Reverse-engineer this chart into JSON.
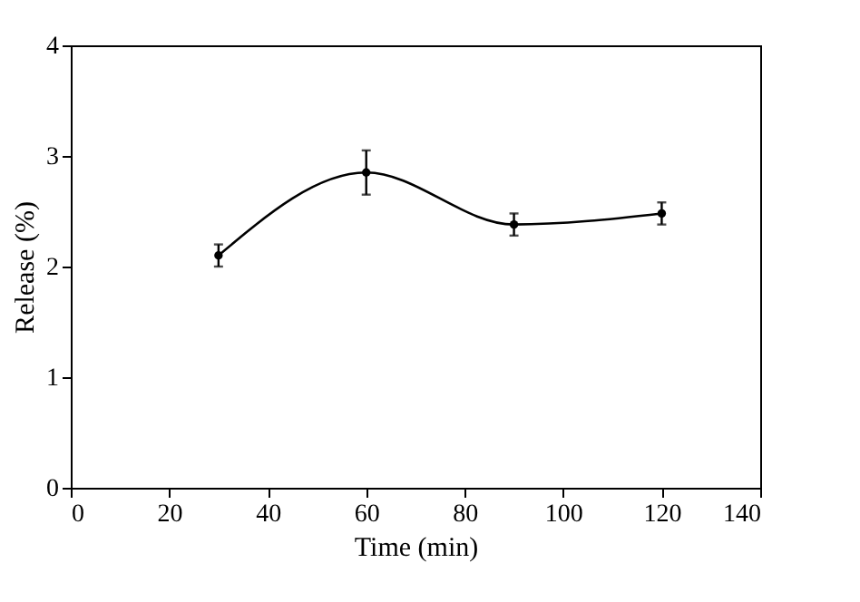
{
  "chart_data": {
    "type": "line",
    "xlabel": "Time (min)",
    "ylabel": "Release (%)",
    "x": [
      30,
      60,
      90,
      120
    ],
    "series": [
      {
        "color": "#000000",
        "values": [
          2.1,
          2.85,
          2.38,
          2.48
        ],
        "errors": [
          0.1,
          0.2,
          0.1,
          0.1
        ]
      }
    ],
    "xlim": [
      0,
      140
    ],
    "xticks": [
      0,
      20,
      40,
      60,
      80,
      100,
      120,
      140
    ],
    "ylim": [
      0,
      4
    ],
    "yticks": [
      0,
      1,
      2,
      3,
      4
    ],
    "grid": false,
    "marker": "circle",
    "line_style": "solid"
  }
}
